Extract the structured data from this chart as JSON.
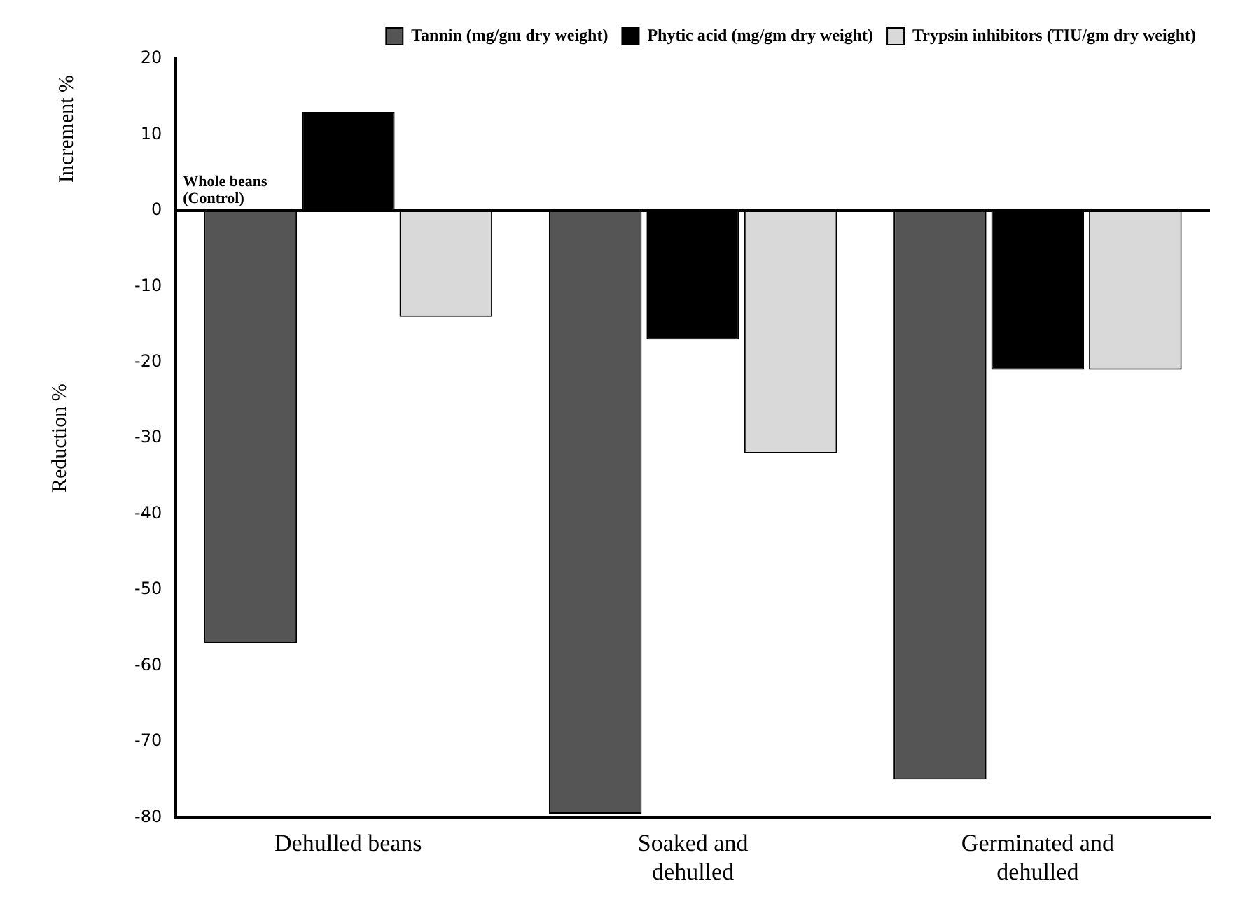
{
  "chart_data": {
    "type": "bar",
    "ylabel": "Reduction %",
    "annotations": [
      "Increment %"
    ],
    "categories": [
      "Dehulled beans",
      "Soaked and dehulled",
      "Germinated and dehulled"
    ],
    "series": [
      {
        "name": "Tannin (mg/gm dry weight)",
        "color": "#555555",
        "values": [
          -57,
          -79.5,
          -75
        ]
      },
      {
        "name": "Phytic acid (mg/gm dry weight)",
        "color": "#000000",
        "values": [
          13,
          -17,
          -21
        ]
      },
      {
        "name": "Trypsin inhibitors (TIU/gm dry weight)",
        "color": "#d9d9d9",
        "values": [
          -14,
          -32,
          -21
        ]
      }
    ],
    "ylim": [
      -80,
      20
    ],
    "yticks": [
      -80,
      -70,
      -60,
      -50,
      -40,
      -30,
      -20,
      -10,
      0,
      10,
      20
    ],
    "ref_lines": [
      {
        "axis": "y",
        "value": 0,
        "label": "Whole beans (Control)",
        "color": "#000000"
      }
    ],
    "legend": "top right",
    "grid": false
  }
}
